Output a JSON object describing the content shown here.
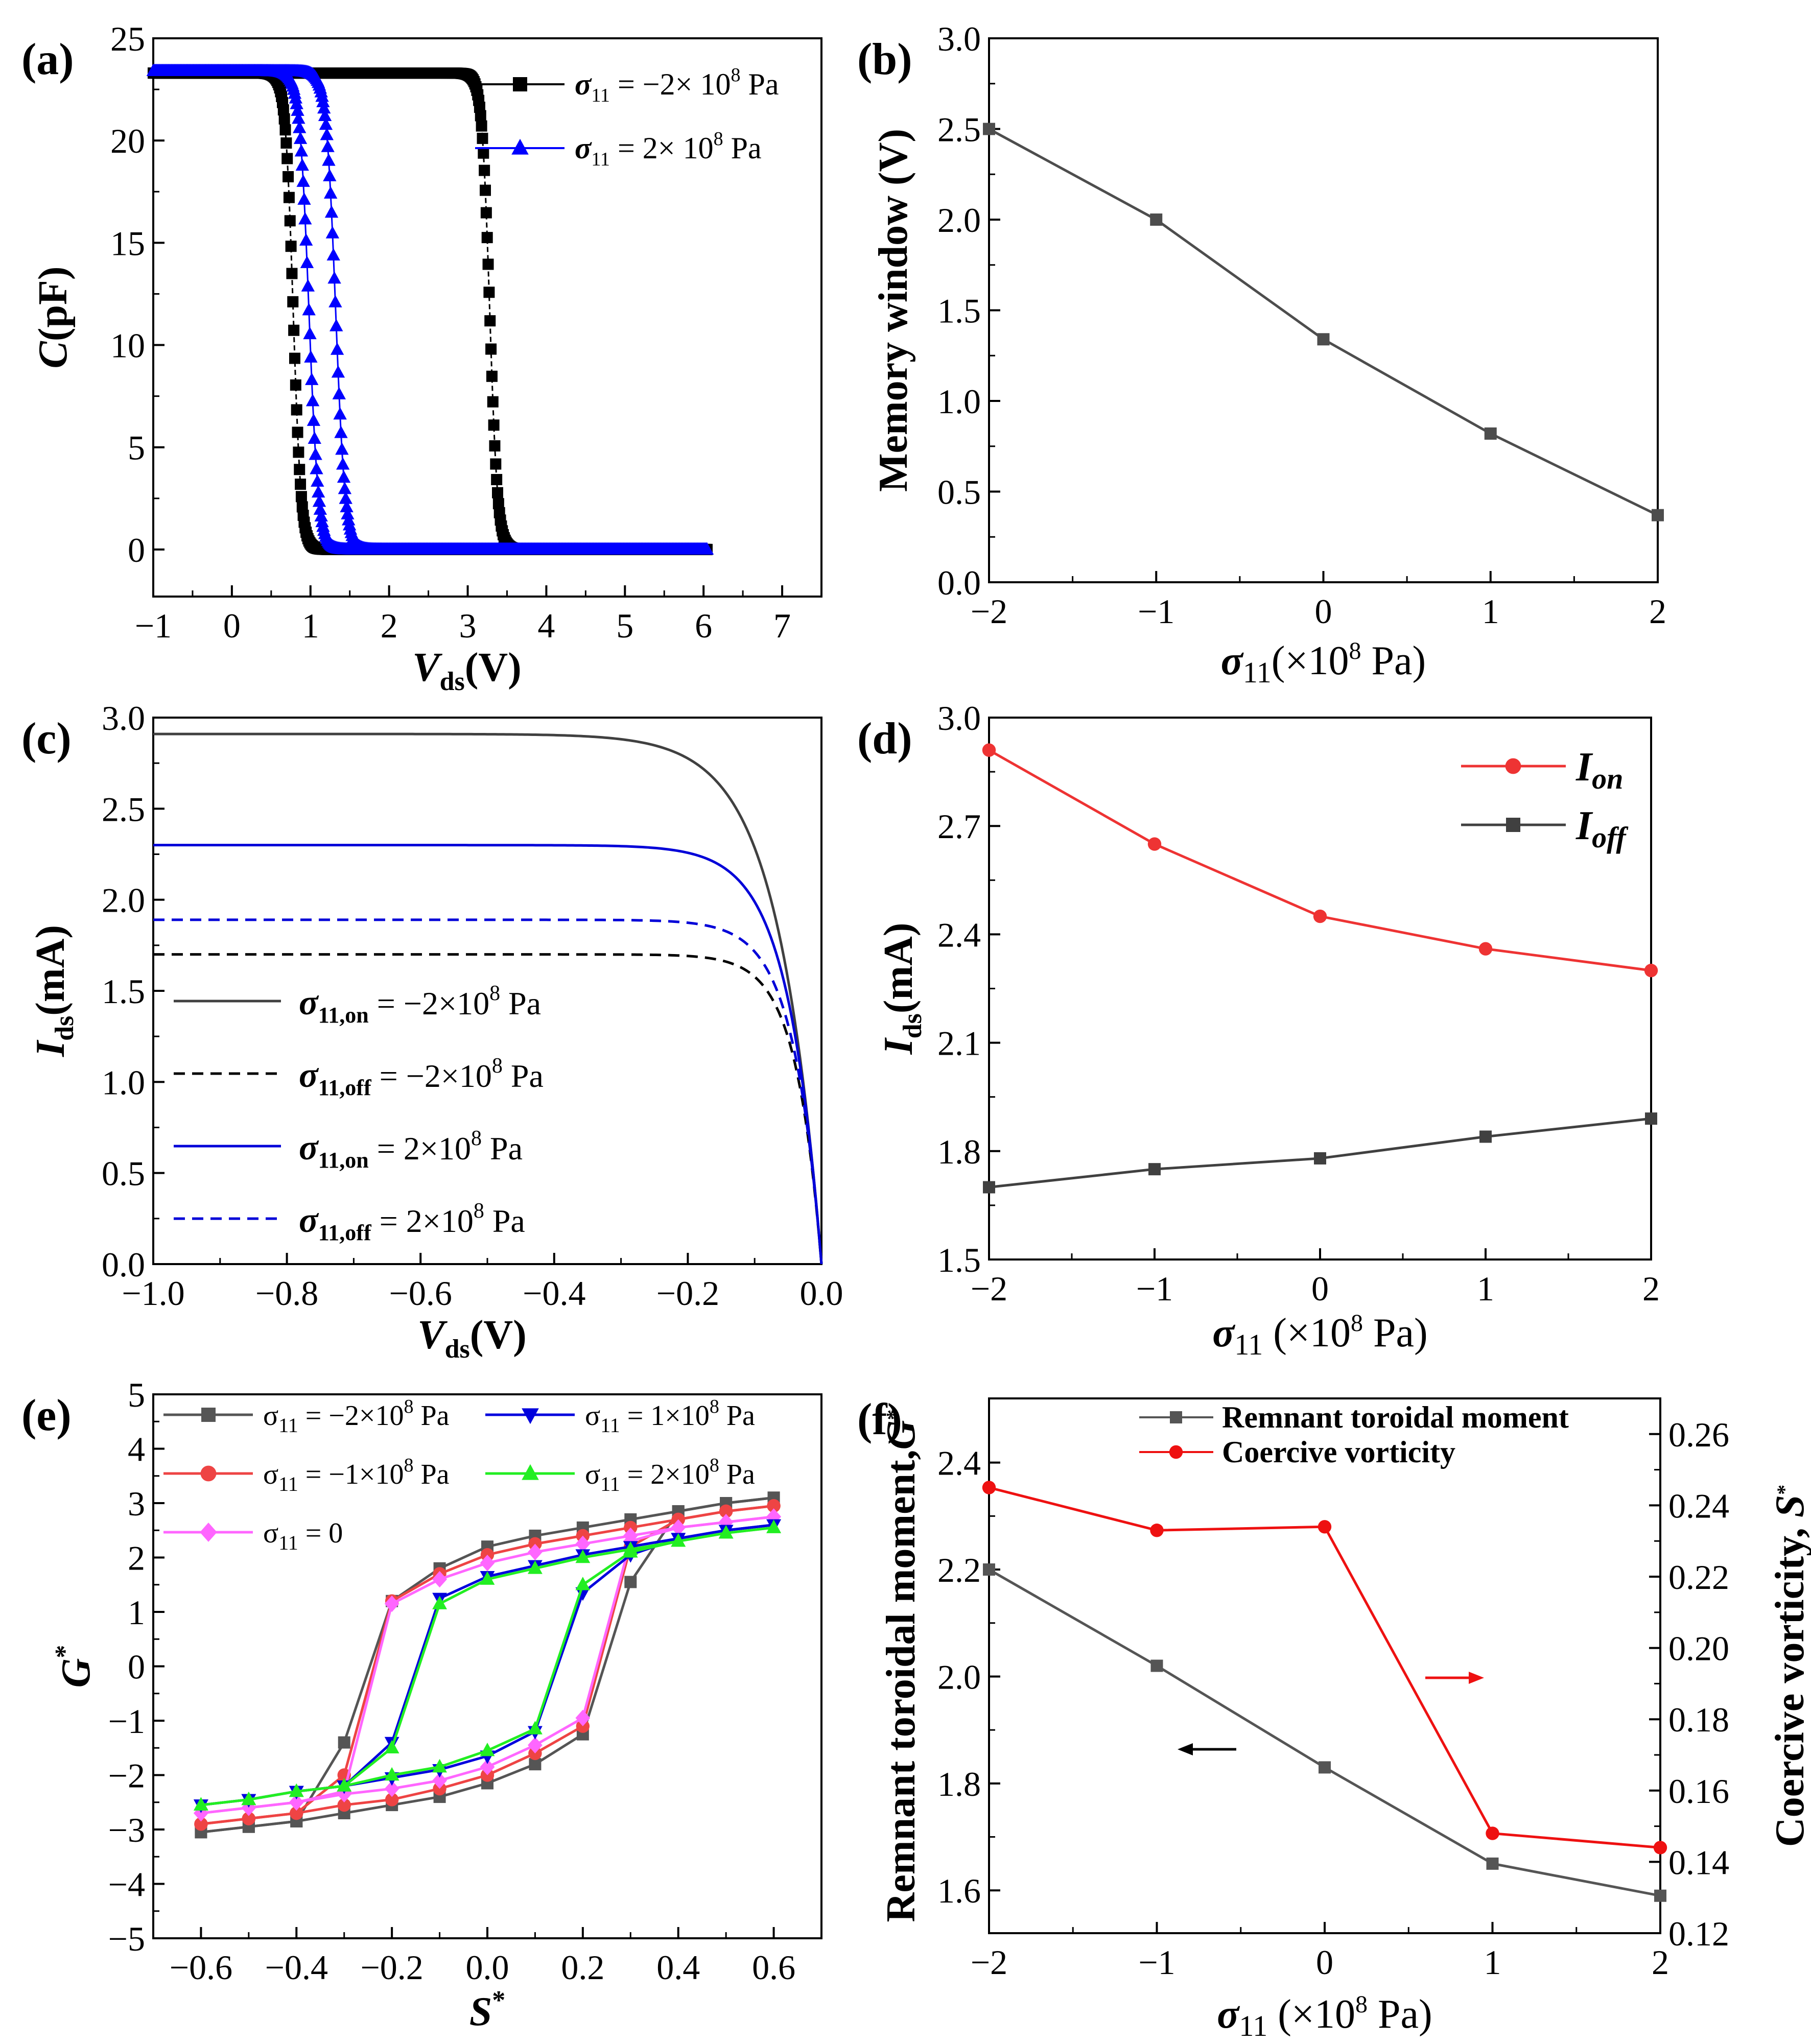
{
  "chart_data": [
    {
      "id": "a",
      "type": "scatter",
      "panel_label": "(a)",
      "xlabel": "V",
      "xlabel_sub": "ds",
      "xlabel_unit": "(V)",
      "ylabel": "C",
      "ylabel_unit": "(pF)",
      "xlim": [
        -1,
        7.5
      ],
      "ylim": [
        -2.3,
        25
      ],
      "xticks": [
        -1,
        0,
        1,
        2,
        3,
        4,
        5,
        6,
        7
      ],
      "xtick_labels": [
        "−1",
        "0",
        "1",
        "2",
        "3",
        "4",
        "5",
        "6",
        "7"
      ],
      "yticks": [
        0,
        5,
        10,
        15,
        20,
        25
      ],
      "ytick_labels": [
        "0",
        "5",
        "10",
        "15",
        "20",
        "25"
      ],
      "legend_position": "top-right",
      "series": [
        {
          "name": "σ11 = −2× 10^8 Pa",
          "legend_pre": "σ",
          "legend_sub": "11",
          "legend_post": " = −2× 10",
          "legend_sup": "8",
          "legend_unit": " Pa",
          "color": "#000000",
          "marker": "square",
          "x_min": -1,
          "x_max": 6.05,
          "c_max": 23.3,
          "transitions": [
            0.78,
            3.28
          ],
          "width": 0.05
        },
        {
          "name": "σ11 = 2× 10^8 Pa",
          "legend_pre": "σ",
          "legend_sub": "11",
          "legend_post": " = 2× 10",
          "legend_sup": "8",
          "legend_unit": "  Pa",
          "color": "#0000ff",
          "marker": "triangle",
          "x_min": -1,
          "x_max": 6.05,
          "c_max": 23.4,
          "transitions": [
            0.98,
            1.32
          ],
          "width": 0.06
        }
      ]
    },
    {
      "id": "b",
      "type": "line",
      "panel_label": "(b)",
      "xlabel": "σ",
      "xlabel_sub": "11",
      "xlabel_unit": "(×10",
      "xlabel_sup": "8",
      "xlabel_tail": " Pa)",
      "ylabel": "Memory window (V)",
      "xlim": [
        -2,
        2
      ],
      "ylim": [
        0,
        3
      ],
      "xticks": [
        -2,
        -1,
        0,
        1,
        2
      ],
      "xtick_labels": [
        "−2",
        "−1",
        "0",
        "1",
        "2"
      ],
      "yticks": [
        0,
        0.5,
        1.0,
        1.5,
        2.0,
        2.5,
        3.0
      ],
      "ytick_labels": [
        "0.0",
        "0.5",
        "1.0",
        "1.5",
        "2.0",
        "2.5",
        "3.0"
      ],
      "series": [
        {
          "name": "Memory window",
          "color": "#4d4d4d",
          "marker": "square",
          "x": [
            -2,
            -1,
            0,
            1,
            2
          ],
          "y": [
            2.5,
            2.0,
            1.34,
            0.82,
            0.37
          ]
        }
      ]
    },
    {
      "id": "c",
      "type": "line",
      "panel_label": "(c)",
      "xlabel": "V",
      "xlabel_sub": "ds",
      "xlabel_unit": "(V)",
      "ylabel": "I",
      "ylabel_sub": "ds",
      "ylabel_unit": "(mA)",
      "xlim": [
        -1.0,
        0.0
      ],
      "ylim": [
        0,
        3.0
      ],
      "xticks": [
        -1.0,
        -0.8,
        -0.6,
        -0.4,
        -0.2,
        0.0
      ],
      "xtick_labels": [
        "−1.0",
        "−0.8",
        "−0.6",
        "−0.4",
        "−0.2",
        "0.0"
      ],
      "yticks": [
        0,
        0.5,
        1.0,
        1.5,
        2.0,
        2.5,
        3.0
      ],
      "ytick_labels": [
        "0.0",
        "0.5",
        "1.0",
        "1.5",
        "2.0",
        "2.5",
        "3.0"
      ],
      "legend_position": "center-left",
      "series": [
        {
          "name": "σ11,on = −2×10^8 Pa",
          "legend_pre": "σ",
          "legend_sub": "11,on",
          "legend_post": " = −2×10",
          "legend_sup": "8",
          "legend_unit": " Pa",
          "color": "#404040",
          "dash": "solid",
          "isat": 2.91,
          "vth": 0.065
        },
        {
          "name": "σ11,off = −2×10^8 Pa",
          "legend_pre": "σ",
          "legend_sub": "11,off",
          "legend_post": " = −2×10",
          "legend_sup": "8",
          "legend_unit": " Pa",
          "color": "#000000",
          "dash": "dashed",
          "isat": 1.7,
          "vth": 0.038
        },
        {
          "name": "σ11,on = 2×10^8 Pa",
          "legend_pre": "σ",
          "legend_sub": "11,on",
          "legend_post": " = 2×10",
          "legend_sup": "8",
          "legend_unit": " Pa",
          "color": "#0000d8",
          "dash": "solid",
          "isat": 2.3,
          "vth": 0.05
        },
        {
          "name": "σ11,off = 2×10^8 Pa",
          "legend_pre": "σ",
          "legend_sub": "11,off",
          "legend_post": " = 2×10",
          "legend_sup": "8",
          "legend_unit": " Pa",
          "color": "#0000d8",
          "dash": "dashed",
          "isat": 1.89,
          "vth": 0.042
        }
      ]
    },
    {
      "id": "d",
      "type": "line",
      "panel_label": "(d)",
      "xlabel": "σ",
      "xlabel_sub": "11",
      "xlabel_unit": " (×10",
      "xlabel_sup": "8",
      "xlabel_tail": " Pa)",
      "ylabel": "I",
      "ylabel_sub": "ds",
      "ylabel_unit": "(mA)",
      "xlim": [
        -2,
        2
      ],
      "ylim": [
        1.5,
        3.0
      ],
      "xticks": [
        -2,
        -1,
        0,
        1,
        2
      ],
      "xtick_labels": [
        "−2",
        "−1",
        "0",
        "1",
        "2"
      ],
      "yticks": [
        1.5,
        1.8,
        2.1,
        2.4,
        2.7,
        3.0
      ],
      "ytick_labels": [
        "1.5",
        "1.8",
        "2.1",
        "2.4",
        "2.7",
        "3.0"
      ],
      "legend_position": "top-right",
      "series": [
        {
          "name": "Ion",
          "legend_pre": "I",
          "legend_sub": "on",
          "color": "#ee3333",
          "marker": "circle",
          "x": [
            -2,
            -1,
            0,
            1,
            2
          ],
          "y": [
            2.91,
            2.65,
            2.45,
            2.36,
            2.3
          ]
        },
        {
          "name": "Ioff",
          "legend_pre": "I",
          "legend_sub": "off",
          "color": "#404040",
          "marker": "square",
          "x": [
            -2,
            -1,
            0,
            1,
            2
          ],
          "y": [
            1.7,
            1.75,
            1.78,
            1.84,
            1.89
          ]
        }
      ]
    },
    {
      "id": "e",
      "type": "line",
      "panel_label": "(e)",
      "xlabel": "S",
      "xlabel_sup": "*",
      "ylabel": "G",
      "ylabel_sup": "*",
      "xlim": [
        -0.7,
        0.7
      ],
      "ylim": [
        -5,
        5
      ],
      "xticks": [
        -0.6,
        -0.4,
        -0.2,
        0.0,
        0.2,
        0.4,
        0.6
      ],
      "xtick_labels": [
        "−0.6",
        "−0.4",
        "−0.2",
        "0.0",
        "0.2",
        "0.4",
        "0.6"
      ],
      "yticks": [
        -5,
        -4,
        -3,
        -2,
        -1,
        0,
        1,
        2,
        3,
        4,
        5
      ],
      "ytick_labels": [
        "−5",
        "−4",
        "−3",
        "−2",
        "−1",
        "0",
        "1",
        "2",
        "3",
        "4",
        "5"
      ],
      "x": [
        -0.6,
        -0.5,
        -0.4,
        -0.3,
        -0.2,
        -0.1,
        0.0,
        0.1,
        0.2,
        0.3,
        0.4,
        0.5,
        0.6
      ],
      "series": [
        {
          "name": "σ11 = −2×10^8 Pa",
          "legend_pre": "σ",
          "legend_sub": "11",
          "legend_post": " = −2×10",
          "legend_sup": "8",
          "legend_unit": " Pa",
          "color": "#555555",
          "marker": "square",
          "upper": [
            -3.05,
            -2.95,
            -2.85,
            -1.4,
            1.2,
            1.8,
            2.2,
            2.4,
            2.55,
            2.7,
            2.85,
            3.0,
            3.1
          ],
          "lower": [
            -3.05,
            -2.95,
            -2.85,
            -2.7,
            -2.55,
            -2.4,
            -2.15,
            -1.8,
            -1.25,
            1.55,
            2.85,
            3.0,
            3.1
          ]
        },
        {
          "name": "σ11 = −1×10^8 Pa",
          "legend_pre": "σ",
          "legend_sub": "11",
          "legend_post": " = −1×10",
          "legend_sup": "8",
          "legend_unit": " Pa",
          "color": "#ee4444",
          "marker": "circle",
          "upper": [
            -2.9,
            -2.8,
            -2.7,
            -2.0,
            1.2,
            1.7,
            2.05,
            2.25,
            2.4,
            2.55,
            2.7,
            2.85,
            2.95
          ],
          "lower": [
            -2.9,
            -2.8,
            -2.7,
            -2.55,
            -2.45,
            -2.25,
            -2.0,
            -1.6,
            -1.1,
            2.2,
            2.7,
            2.85,
            2.95
          ]
        },
        {
          "name": "σ11 = 0",
          "legend_pre": "σ",
          "legend_sub": "11",
          "legend_post": " = 0",
          "color": "#ff66ff",
          "marker": "diamond",
          "upper": [
            -2.7,
            -2.6,
            -2.5,
            -2.3,
            1.15,
            1.6,
            1.9,
            2.1,
            2.25,
            2.4,
            2.55,
            2.65,
            2.75
          ],
          "lower": [
            -2.7,
            -2.6,
            -2.5,
            -2.35,
            -2.25,
            -2.1,
            -1.85,
            -1.45,
            -0.95,
            2.3,
            2.55,
            2.65,
            2.75
          ]
        },
        {
          "name": "σ11 = 1×10^8 Pa",
          "legend_pre": "σ",
          "legend_sub": "11",
          "legend_post": " = 1×10",
          "legend_sup": "8",
          "legend_unit": " Pa",
          "color": "#0000dd",
          "marker": "triangle-down",
          "upper": [
            -2.55,
            -2.45,
            -2.3,
            -2.2,
            -1.4,
            1.25,
            1.65,
            1.85,
            2.05,
            2.2,
            2.35,
            2.5,
            2.6
          ],
          "lower": [
            -2.55,
            -2.45,
            -2.3,
            -2.2,
            -2.05,
            -1.9,
            -1.65,
            -1.2,
            1.35,
            2.05,
            2.35,
            2.5,
            2.6
          ]
        },
        {
          "name": "σ11 = 2×10^8 Pa",
          "legend_pre": "σ",
          "legend_sub": "11",
          "legend_post": " = 2×10",
          "legend_sup": "8",
          "legend_unit": " Pa",
          "color": "#22ee22",
          "marker": "triangle",
          "upper": [
            -2.55,
            -2.45,
            -2.3,
            -2.2,
            -1.5,
            1.15,
            1.6,
            1.8,
            2.0,
            2.15,
            2.3,
            2.45,
            2.55
          ],
          "lower": [
            -2.55,
            -2.45,
            -2.3,
            -2.2,
            -2.0,
            -1.85,
            -1.55,
            -1.15,
            1.5,
            2.1,
            2.3,
            2.45,
            2.55
          ]
        }
      ]
    },
    {
      "id": "f",
      "type": "line",
      "panel_label": "(f)",
      "xlabel": "σ",
      "xlabel_sub": "11",
      "xlabel_unit": " (×10",
      "xlabel_sup": "8",
      "xlabel_tail": " Pa)",
      "ylabel": "Remnant toroidal moment,",
      "ylabel_italic": "G",
      "ylabel_sup": "*",
      "ylabel_right": "Coercive vorticity,",
      "ylabel_right_italic": "S",
      "ylabel_right_sup": "*",
      "xlim": [
        -2,
        2
      ],
      "ylim": [
        1.52,
        2.52
      ],
      "ylim_right": [
        0.12,
        0.27
      ],
      "xticks": [
        -2,
        -1,
        0,
        1,
        2
      ],
      "xtick_labels": [
        "−2",
        "−1",
        "0",
        "1",
        "2"
      ],
      "yticks": [
        1.6,
        1.8,
        2.0,
        2.2,
        2.4
      ],
      "ytick_labels": [
        "1.6",
        "1.8",
        "2.0",
        "2.2",
        "2.4"
      ],
      "yticks_right": [
        0.12,
        0.14,
        0.16,
        0.18,
        0.2,
        0.22,
        0.24,
        0.26
      ],
      "ytick_labels_right": [
        "0.12",
        "0.14",
        "0.16",
        "0.18",
        "0.20",
        "0.22",
        "0.24",
        "0.26"
      ],
      "legend_position": "top-right",
      "series": [
        {
          "name": "Remnant toroidal moment",
          "axis": "left",
          "color": "#555555",
          "marker": "square",
          "x": [
            -2,
            -1,
            0,
            1,
            2
          ],
          "y": [
            2.2,
            2.02,
            1.83,
            1.65,
            1.59
          ]
        },
        {
          "name": "Coercive vorticity",
          "axis": "right",
          "color": "#ee1111",
          "marker": "circle",
          "x": [
            -2,
            -1,
            0,
            1,
            2
          ],
          "y": [
            0.245,
            0.233,
            0.234,
            0.148,
            0.144
          ]
        }
      ]
    }
  ]
}
